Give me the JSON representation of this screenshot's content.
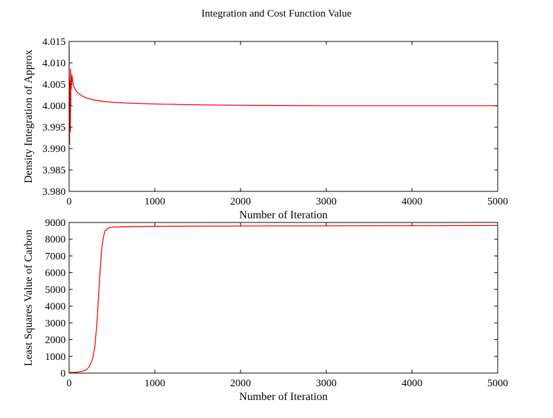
{
  "figure": {
    "title": "Integration and Cost Function Value"
  },
  "chart_data": [
    {
      "type": "line",
      "title": "",
      "xlabel": "Number of Iteration",
      "ylabel": "Density Integration of Approx",
      "xlim": [
        0,
        5000
      ],
      "ylim": [
        3.98,
        4.015
      ],
      "xticks": [
        "0",
        "1000",
        "2000",
        "3000",
        "4000",
        "5000"
      ],
      "yticks": [
        "3.980",
        "3.985",
        "3.990",
        "3.995",
        "4.000",
        "4.005",
        "4.010",
        "4.015"
      ],
      "grid": false,
      "line_color": "#ff0000",
      "series": [
        {
          "x": [
            0,
            2,
            5,
            8,
            10,
            12,
            15,
            18,
            20,
            22,
            25,
            28,
            30,
            35,
            40,
            50,
            60,
            80,
            100,
            150,
            200,
            300,
            400,
            500,
            700,
            1000,
            1500,
            2000,
            2500,
            3000,
            4000,
            5000
          ],
          "values": [
            4.014,
            3.999,
            3.991,
            4.004,
            3.996,
            4.006,
            3.994,
            4.0085,
            4.0,
            4.0075,
            4.004,
            4.0065,
            4.0055,
            4.007,
            4.006,
            4.0048,
            4.0043,
            4.0035,
            4.003,
            4.0023,
            4.0018,
            4.0013,
            4.001,
            4.0008,
            4.0006,
            4.0004,
            4.0002,
            4.0001,
            4.00005,
            4.0,
            4.0,
            4.0
          ]
        }
      ]
    },
    {
      "type": "line",
      "title": "",
      "xlabel": "Number of Iteration",
      "ylabel": "Least Squares Value of Carbon",
      "xlim": [
        0,
        5000
      ],
      "ylim": [
        0,
        9000
      ],
      "xticks": [
        "0",
        "1000",
        "2000",
        "3000",
        "4000",
        "5000"
      ],
      "yticks": [
        "0",
        "1000",
        "2000",
        "3000",
        "4000",
        "5000",
        "6000",
        "7000",
        "8000",
        "9000"
      ],
      "grid": false,
      "line_color": "#ff0000",
      "series": [
        {
          "x": [
            0,
            50,
            100,
            150,
            200,
            230,
            260,
            280,
            300,
            320,
            340,
            360,
            380,
            400,
            420,
            450,
            480,
            500,
            600,
            800,
            1000,
            2000,
            3000,
            4000,
            5000
          ],
          "values": [
            30,
            40,
            60,
            100,
            200,
            350,
            650,
            1000,
            1600,
            2700,
            4300,
            6000,
            7400,
            8150,
            8500,
            8650,
            8700,
            8720,
            8740,
            8760,
            8770,
            8790,
            8800,
            8810,
            8820
          ]
        }
      ]
    }
  ]
}
